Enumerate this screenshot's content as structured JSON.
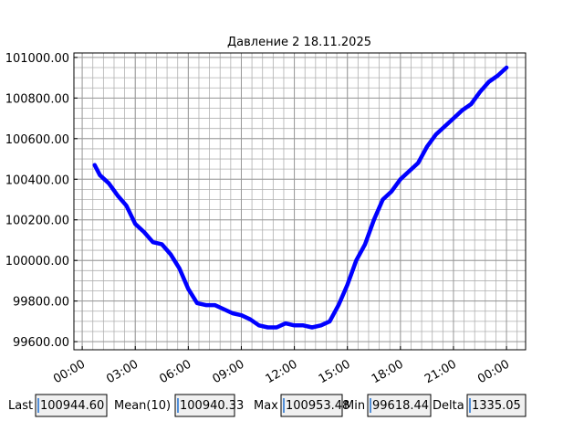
{
  "chart_data": {
    "type": "line",
    "title": "Давление 2 18.11.2025",
    "x": [
      0.7,
      1.0,
      1.5,
      2.0,
      2.5,
      3.0,
      3.5,
      4.0,
      4.5,
      5.0,
      5.5,
      6.0,
      6.5,
      7.0,
      7.5,
      8.0,
      8.5,
      9.0,
      9.5,
      10.0,
      10.5,
      11.0,
      11.5,
      12.0,
      12.5,
      13.0,
      13.5,
      14.0,
      14.5,
      15.0,
      15.5,
      16.0,
      16.5,
      17.0,
      17.5,
      18.0,
      18.5,
      19.0,
      19.5,
      20.0,
      20.5,
      21.0,
      21.5,
      22.0,
      22.5,
      23.0,
      23.5,
      24.0
    ],
    "series": [
      {
        "color": "#0000ff",
        "values": [
          100470,
          100420,
          100380,
          100320,
          100270,
          100180,
          100140,
          100090,
          100080,
          100030,
          99960,
          99860,
          99790,
          99780,
          99780,
          99760,
          99740,
          99730,
          99710,
          99680,
          99670,
          99670,
          99690,
          99680,
          99680,
          99670,
          99680,
          99700,
          99780,
          99880,
          100000,
          100080,
          100200,
          100300,
          100340,
          100400,
          100440,
          100480,
          100560,
          100620,
          100660,
          100700,
          100740,
          100770,
          100830,
          100880,
          100910,
          100950
        ]
      }
    ],
    "xlim": [
      -0.47,
      25.08
    ],
    "xticks": [
      {
        "value": 0,
        "label": "00:00"
      },
      {
        "value": 3,
        "label": "03:00"
      },
      {
        "value": 6,
        "label": "06:00"
      },
      {
        "value": 9,
        "label": "09:00"
      },
      {
        "value": 12,
        "label": "12:00"
      },
      {
        "value": 15,
        "label": "15:00"
      },
      {
        "value": 18,
        "label": "18:00"
      },
      {
        "value": 21,
        "label": "21:00"
      },
      {
        "value": 24,
        "label": "00:00"
      }
    ],
    "ylim": [
      99560,
      101022
    ],
    "yticks": [
      {
        "value": 99600,
        "label": "99600.00"
      },
      {
        "value": 99800,
        "label": "99800.00"
      },
      {
        "value": 100000,
        "label": "100000.00"
      },
      {
        "value": 100200,
        "label": "100200.00"
      },
      {
        "value": 100400,
        "label": "100400.00"
      },
      {
        "value": 100600,
        "label": "100600.00"
      },
      {
        "value": 100800,
        "label": "100800.00"
      },
      {
        "value": 101000,
        "label": "101000.00"
      }
    ],
    "grid": true,
    "minor_grid_divisions": {
      "x": 5,
      "y": 4
    }
  },
  "stats": [
    {
      "label": "Last",
      "value": "100944.60"
    },
    {
      "label": "Mean(10)",
      "value": "100940.33"
    },
    {
      "label": "Max",
      "value": "100953.48"
    },
    {
      "label": "Min",
      "value": "99618.44"
    },
    {
      "label": "Delta",
      "value": "1335.05"
    }
  ]
}
